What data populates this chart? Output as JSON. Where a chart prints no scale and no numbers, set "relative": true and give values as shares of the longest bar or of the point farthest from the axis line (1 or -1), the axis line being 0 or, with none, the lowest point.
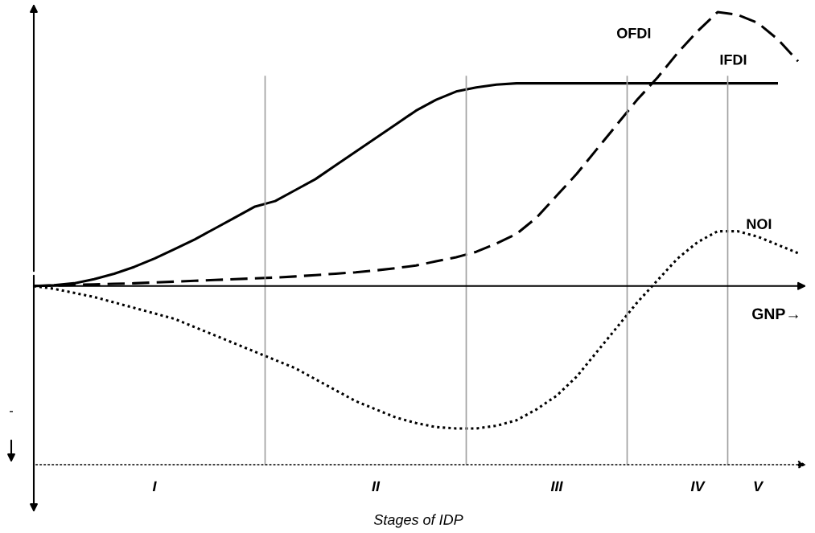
{
  "chart_data": {
    "type": "line",
    "relative": true,
    "legend": false,
    "categories": [
      null,
      null,
      null,
      null,
      null,
      null,
      "I",
      null,
      null,
      null,
      null,
      null,
      null,
      null,
      null,
      null,
      null,
      "II",
      null,
      null,
      null,
      null,
      null,
      null,
      null,
      null,
      "III",
      null,
      null,
      null,
      null,
      null,
      null,
      "IV",
      null,
      null,
      "V",
      null,
      null
    ],
    "series": [
      {
        "name": "IFDI",
        "color": "#000000",
        "line_style": "solid",
        "values": [
          0,
          0.003,
          0.01,
          0.025,
          0.045,
          0.07,
          0.1,
          0.135,
          0.17,
          0.21,
          0.25,
          0.29,
          0.31,
          0.35,
          0.39,
          0.44,
          0.49,
          0.54,
          0.59,
          0.64,
          0.68,
          0.71,
          0.725,
          0.735,
          0.74,
          0.74,
          0.74,
          0.74,
          0.74,
          0.74,
          0.74,
          0.74,
          0.74,
          0.74,
          0.74,
          0.74,
          0.74,
          0.74,
          null
        ]
      },
      {
        "name": "OFDI",
        "color": "#000000",
        "line_style": "dashed",
        "values": [
          0,
          0.002,
          0.004,
          0.006,
          0.008,
          0.01,
          0.013,
          0.016,
          0.019,
          0.022,
          0.025,
          0.028,
          0.031,
          0.035,
          0.04,
          0.045,
          0.05,
          0.057,
          0.065,
          0.075,
          0.09,
          0.105,
          0.125,
          0.155,
          0.19,
          0.25,
          0.33,
          0.41,
          0.5,
          0.59,
          0.68,
          0.76,
          0.85,
          0.93,
          1,
          0.99,
          0.96,
          0.9,
          0.82
        ]
      },
      {
        "name": "NOI",
        "color": "#000000",
        "line_style": "dotted",
        "values": [
          0,
          -0.01,
          -0.025,
          -0.04,
          -0.06,
          -0.08,
          -0.1,
          -0.12,
          -0.15,
          -0.18,
          -0.21,
          -0.24,
          -0.27,
          -0.3,
          -0.34,
          -0.38,
          -0.42,
          -0.45,
          -0.48,
          -0.5,
          -0.515,
          -0.52,
          -0.52,
          -0.51,
          -0.49,
          -0.45,
          -0.4,
          -0.33,
          -0.24,
          -0.15,
          -0.06,
          0.02,
          0.1,
          0.16,
          0.2,
          0.2,
          0.18,
          0.15,
          0.12
        ]
      }
    ],
    "annotations": [
      "Stages of IDP",
      "GNP→",
      "-"
    ]
  }
}
